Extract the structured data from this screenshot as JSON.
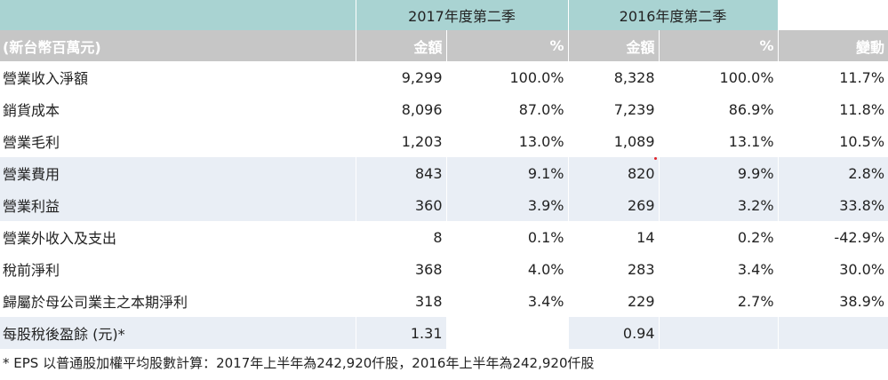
{
  "table": {
    "period_headers": [
      "2017年度第二季",
      "2016年度第二季"
    ],
    "unit_label": "(新台幣百萬元)",
    "col_amount": "金額",
    "col_pct": "%",
    "col_change": "變動",
    "rows": [
      {
        "label": "營業收入淨額",
        "a2017": "9,299",
        "p2017": "100.0%",
        "a2016": "8,328",
        "p2016": "100.0%",
        "change": "11.7%"
      },
      {
        "label": "銷貨成本",
        "a2017": "8,096",
        "p2017": "87.0%",
        "a2016": "7,239",
        "p2016": "86.9%",
        "change": "11.8%"
      },
      {
        "label": "營業毛利",
        "a2017": "1,203",
        "p2017": "13.0%",
        "a2016": "1,089",
        "p2016": "13.1%",
        "change": "10.5%"
      },
      {
        "label": "營業費用",
        "a2017": "843",
        "p2017": "9.1%",
        "a2016": "820",
        "p2016": "9.9%",
        "change": "2.8%"
      },
      {
        "label": "營業利益",
        "a2017": "360",
        "p2017": "3.9%",
        "a2016": "269",
        "p2016": "3.2%",
        "change": "33.8%"
      },
      {
        "label": "營業外收入及支出",
        "a2017": "8",
        "p2017": "0.1%",
        "a2016": "14",
        "p2016": "0.2%",
        "change": "-42.9%"
      },
      {
        "label": "稅前淨利",
        "a2017": "368",
        "p2017": "4.0%",
        "a2016": "283",
        "p2016": "3.4%",
        "change": "30.0%"
      },
      {
        "label": "歸屬於母公司業主之本期淨利",
        "a2017": "318",
        "p2017": "3.4%",
        "a2016": "229",
        "p2016": "2.7%",
        "change": "38.9%"
      },
      {
        "label": "每股稅後盈餘 (元)*",
        "a2017": "1.31",
        "p2017": "",
        "a2016": "0.94",
        "p2016": "",
        "change": ""
      }
    ]
  },
  "footnote": "* EPS 以普通股加權平均股數計算：2017年上半年為242,920仟股，2016年上半年為242,920仟股",
  "colors": {
    "header_teal": "#a9d3d2",
    "subheader_gray": "#c6c6c6",
    "row_shade": "#e9eef5",
    "marker_red": "#e0262a"
  }
}
